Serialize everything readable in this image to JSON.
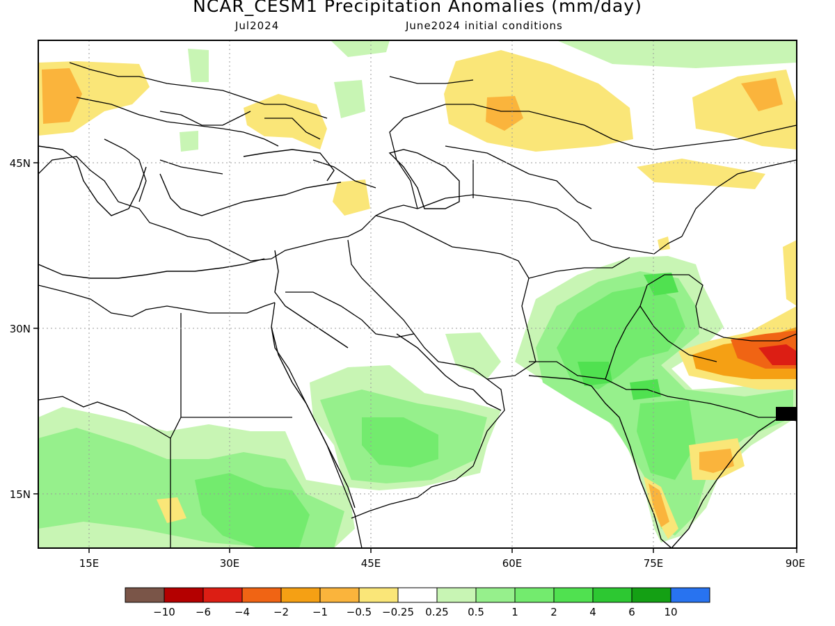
{
  "title": "NCAR_CESM1 Precipitation Anomalies (mm/day)",
  "valid_month": "Jul2024",
  "init_label": "June2024 initial conditions",
  "lon_labels": [
    "15E",
    "30E",
    "45E",
    "60E",
    "75E",
    "90E"
  ],
  "lat_labels": [
    "45N",
    "30N",
    "15N"
  ],
  "legend": {
    "colors": [
      "#7a5548",
      "#b40000",
      "#dc1e14",
      "#f06414",
      "#f5a014",
      "#fab43c",
      "#fae678",
      "#ffffff",
      "#c8f5b4",
      "#96f08c",
      "#73eb6e",
      "#50e150",
      "#2dc832",
      "#14a014",
      "#2873f0"
    ],
    "labels": [
      "-10",
      "-6",
      "-4",
      "-2",
      "-1",
      "-0.5",
      "-0.25",
      "0.25",
      "0.5",
      "1",
      "2",
      "4",
      "6",
      "10"
    ]
  }
}
